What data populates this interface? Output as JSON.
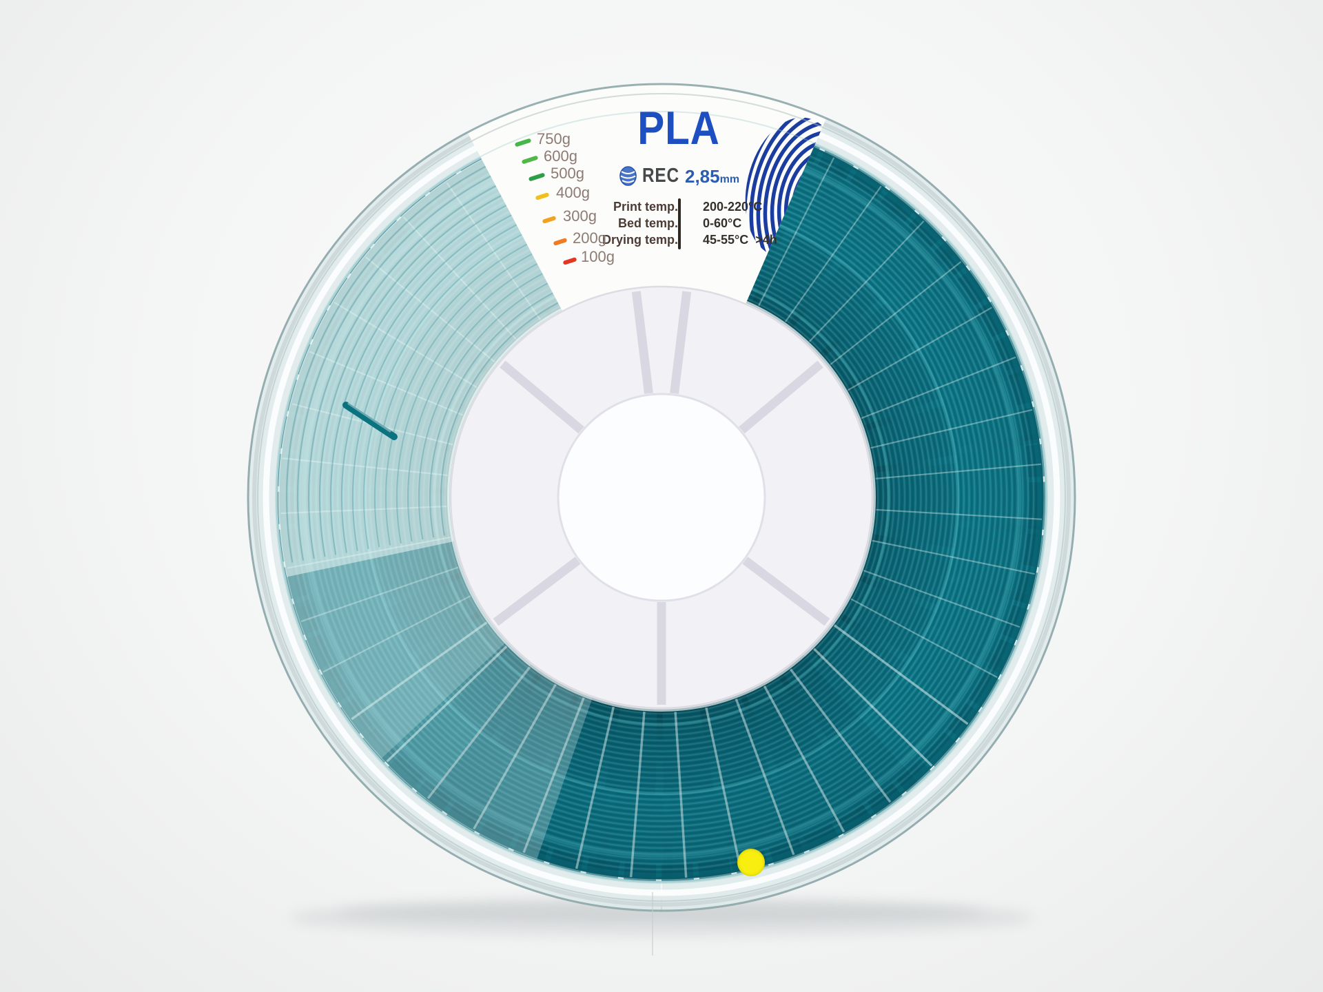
{
  "product_label": {
    "material": "PLA",
    "brand": "REC",
    "diameter": {
      "value": "2,85",
      "unit": "mm"
    },
    "specs": [
      {
        "label": "Print temp.",
        "value": "200-220°C"
      },
      {
        "label": "Bed temp.",
        "value": "0-60°C"
      },
      {
        "label": "Drying temp.",
        "value": "45-55°C  >4h"
      }
    ],
    "weight_scale": [
      {
        "label": "750g",
        "tick_color": "#45b649"
      },
      {
        "label": "600g",
        "tick_color": "#51b848"
      },
      {
        "label": "500g",
        "tick_color": "#2f9e49"
      },
      {
        "label": "400g",
        "tick_color": "#f0c020"
      },
      {
        "label": "300g",
        "tick_color": "#f2a222"
      },
      {
        "label": "200g",
        "tick_color": "#ef7b23"
      },
      {
        "label": "100g",
        "tick_color": "#e23723"
      }
    ]
  },
  "markers": {
    "quality_dot_color": "#f8ee0f"
  },
  "colors": {
    "background": "#f1f2f2",
    "filament_teal": "#0e7a8a",
    "filament_dark": "#064a57",
    "filament_highlight": "#17a0ab",
    "label_background": "#fcfcfa",
    "material_text": "#1e4fc0",
    "diameter_text": "#2b5cb0",
    "brand_text": "#46494c",
    "spec_label_text": "#4c3b33",
    "spec_value_text": "#36302b",
    "weight_text": "#8d7b73",
    "logo_blue": "#1c3da0",
    "hub_plastic": "#f2f1f5",
    "spoke_gray": "#d9d7e1"
  }
}
